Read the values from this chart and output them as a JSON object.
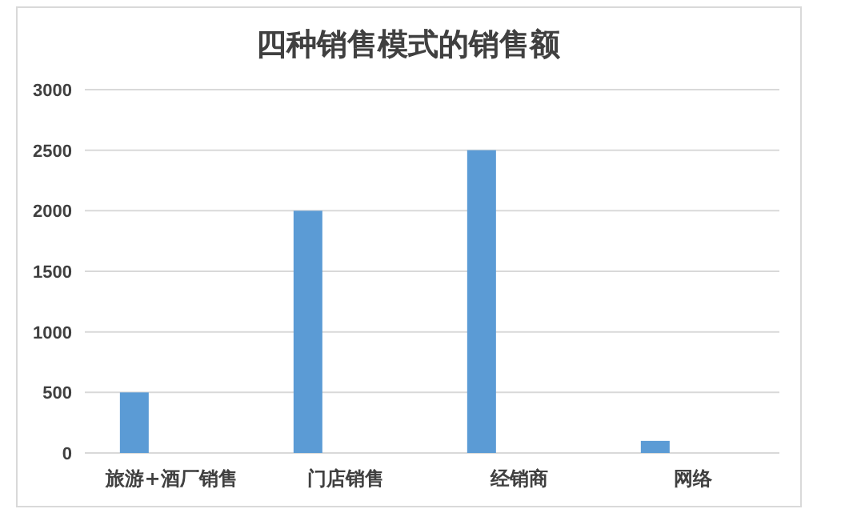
{
  "chart_data": {
    "type": "bar",
    "title": "四种销售模式的销售额",
    "categories": [
      "旅游+酒厂销售",
      "门店销售",
      "经销商",
      "网络"
    ],
    "values": [
      500,
      2000,
      2500,
      100
    ],
    "color": "#5b9bd5",
    "ylim": [
      0,
      3000
    ],
    "yticks": [
      0,
      500,
      1000,
      1500,
      2000,
      2500,
      3000
    ],
    "grid": "y"
  }
}
